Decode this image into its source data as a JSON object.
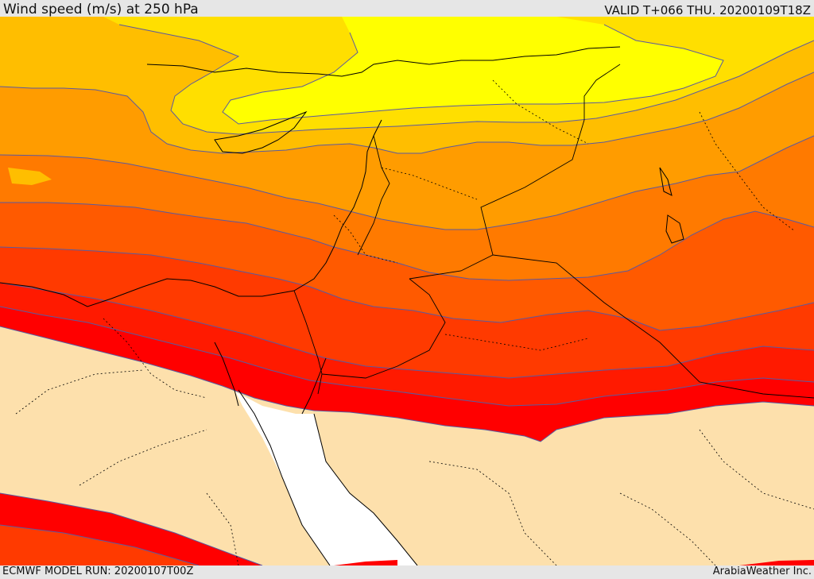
{
  "header": {
    "title": "Wind speed (m/s) at 250 hPa",
    "valid_time": "VALID T+066 THU. 20200109T18Z"
  },
  "footer": {
    "model_run": "ECMWF MODEL RUN: 20200107T00Z",
    "credit": "ArabiaWeather Inc."
  },
  "colors": {
    "below_threshold": "#fde0ac",
    "sea": "#ffffff",
    "band_1": "#ffff00",
    "band_2": "#ffdf00",
    "band_3": "#ffbe00",
    "band_4": "#ff9c00",
    "band_5": "#ff7a00",
    "band_6": "#ff5a00",
    "band_7": "#ff3a00",
    "band_8": "#ff1a00",
    "band_9": "#ff0000",
    "contour_line": "#5a5aa0",
    "border_line": "#000000"
  }
}
